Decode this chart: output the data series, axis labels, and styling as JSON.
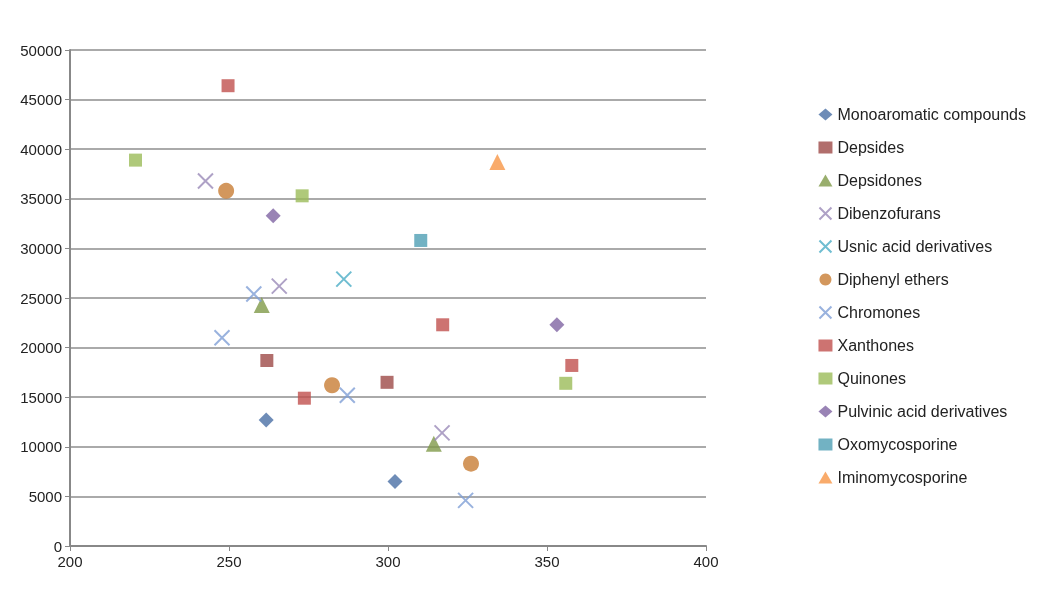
{
  "chart_data": {
    "type": "scatter",
    "xlim": [
      200,
      400
    ],
    "xticks": [
      200,
      250,
      300,
      350,
      400
    ],
    "ylim": [
      0,
      50000
    ],
    "yticks": [
      0,
      5000,
      10000,
      15000,
      20000,
      25000,
      30000,
      35000,
      40000,
      45000,
      50000
    ],
    "grid": "y",
    "legend": "right",
    "series": [
      {
        "name": "Monoaromatic compounds",
        "color": "#4a6fa5",
        "marker": "diamond",
        "x": [
          261.7,
          302.2
        ],
        "values": [
          12700,
          6500
        ]
      },
      {
        "name": "Depsides",
        "color": "#9e4a47",
        "marker": "square",
        "x": [
          261.9,
          299.7
        ],
        "values": [
          18700,
          16500
        ]
      },
      {
        "name": "Depsidones",
        "color": "#7f9a48",
        "marker": "triangle",
        "x": [
          260.3,
          314.4
        ],
        "values": [
          24300,
          10300
        ]
      },
      {
        "name": "Dibenzofurans",
        "color": "#9a8ab8",
        "marker": "cross",
        "x": [
          242.6,
          265.8,
          317
        ],
        "values": [
          36800,
          26200,
          11400
        ]
      },
      {
        "name": "Usnic acid derivatives",
        "color": "#4bacc6",
        "marker": "cross",
        "x": [
          286.1
        ],
        "values": [
          26900
        ]
      },
      {
        "name": "Diphenyl ethers",
        "color": "#c87d35",
        "marker": "circle",
        "x": [
          249.1,
          282.4,
          326.1
        ],
        "values": [
          35800,
          16200,
          8300
        ]
      },
      {
        "name": "Chromones",
        "color": "#7f9fd6",
        "marker": "cross",
        "x": [
          247.8,
          257.8,
          287.2,
          324.4
        ],
        "values": [
          21000,
          25400,
          15200,
          4600
        ]
      },
      {
        "name": "Xanthones",
        "color": "#c0504d",
        "marker": "square",
        "x": [
          249.7,
          273.7,
          317.2,
          357.8
        ],
        "values": [
          46400,
          14900,
          22300,
          18200
        ]
      },
      {
        "name": "Quinones",
        "color": "#9bbb59",
        "marker": "square",
        "x": [
          220.6,
          273,
          355.9
        ],
        "values": [
          38900,
          35300,
          16400
        ]
      },
      {
        "name": "Pulvinic acid derivatives",
        "color": "#8064a2",
        "marker": "diamond",
        "x": [
          263.9,
          353.1
        ],
        "values": [
          33300,
          22300
        ]
      },
      {
        "name": "Oxomycosporine",
        "color": "#4f9fb4",
        "marker": "square",
        "x": [
          310.3
        ],
        "values": [
          30800
        ]
      },
      {
        "name": "Iminomycosporine",
        "color": "#f79646",
        "marker": "triangle",
        "x": [
          334.4
        ],
        "values": [
          38700
        ]
      }
    ]
  }
}
